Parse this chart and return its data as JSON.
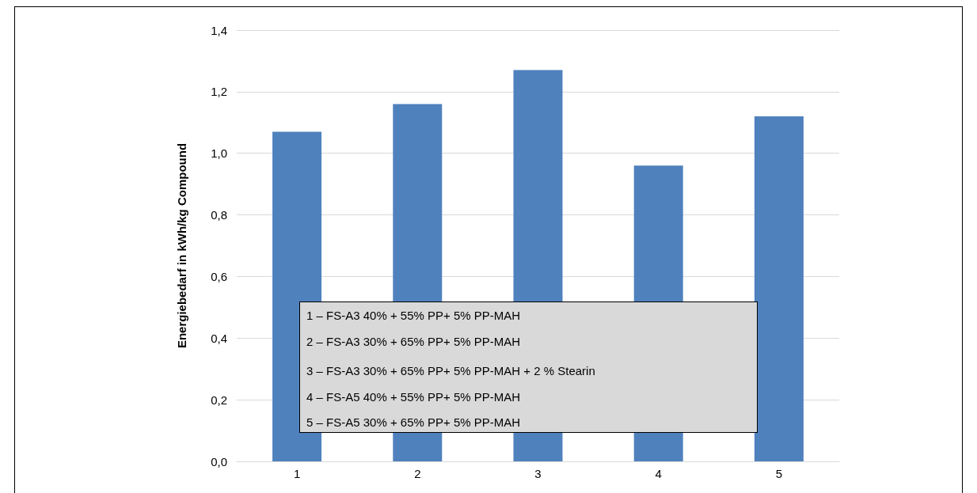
{
  "chart_data": {
    "type": "bar",
    "ylabel": "Energiebedarf in kWh/kg Compound",
    "categories": [
      "1",
      "2",
      "3",
      "4",
      "5"
    ],
    "values": [
      1.07,
      1.16,
      1.27,
      0.96,
      1.12
    ],
    "color": "#4f81bd",
    "ylim": [
      0,
      1.4
    ],
    "yticks": [
      {
        "value": 0,
        "label": "0,0"
      },
      {
        "value": 0.2,
        "label": "0,2"
      },
      {
        "value": 0.4,
        "label": "0,4"
      },
      {
        "value": 0.6,
        "label": "0,6"
      },
      {
        "value": 0.8,
        "label": "0,8"
      },
      {
        "value": 1.0,
        "label": "1,0"
      },
      {
        "value": 1.2,
        "label": "1,2"
      },
      {
        "value": 1.4,
        "label": "1,4"
      }
    ],
    "grid": "y",
    "annotations": [
      "1 – FS-A3 40% + 55% PP+ 5% PP-MAH",
      "2 – FS-A3 30% + 65% PP+ 5% PP-MAH",
      "3 – FS-A3 30% + 65% PP+ 5% PP-MAH + 2 % Stearin",
      "4 – FS-A5 40% + 55% PP+ 5% PP-MAH",
      "5 – FS-A5 30% + 65% PP+ 5% PP-MAH"
    ]
  }
}
